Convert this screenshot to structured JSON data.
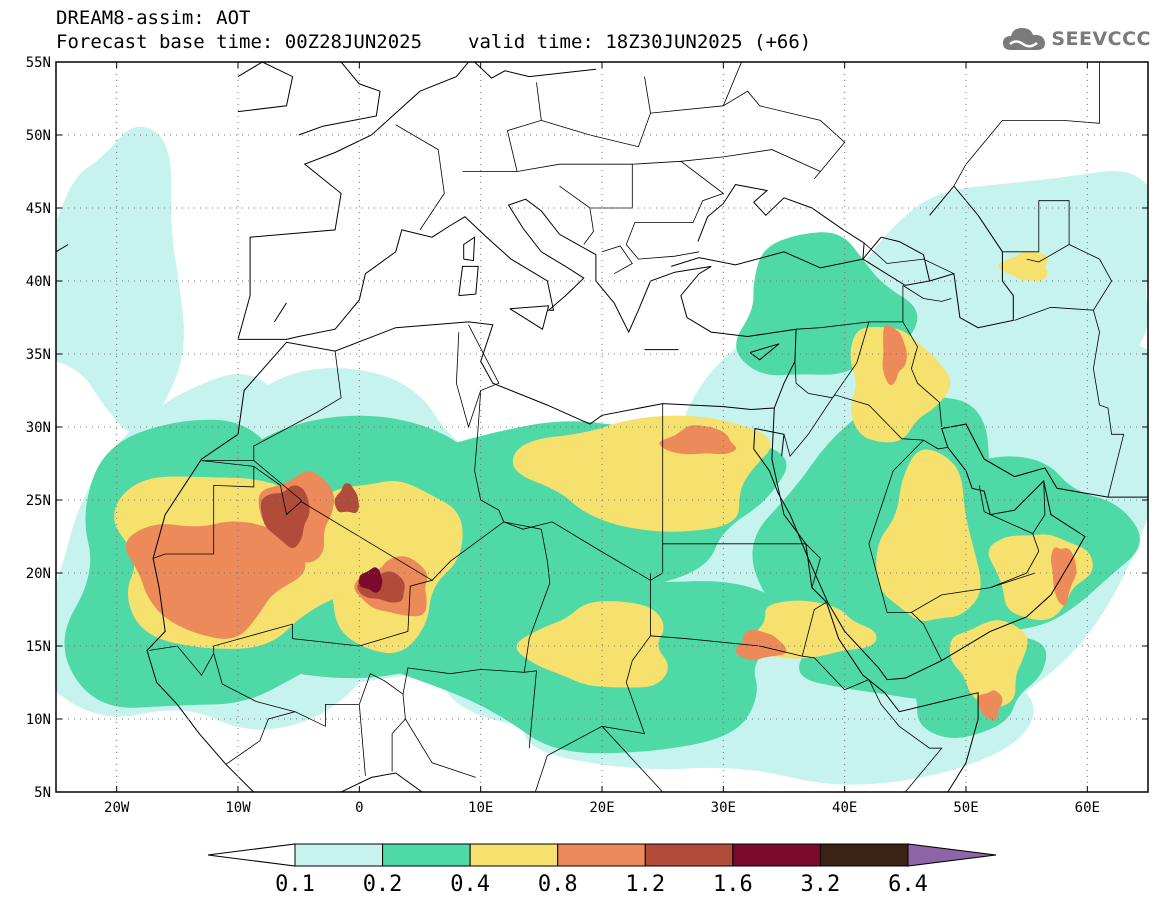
{
  "header": {
    "title": "DREAM8-assim: AOT",
    "base_time": "Forecast base time: 00Z28JUN2025",
    "valid_time": "valid time: 18Z30JUN2025 (+66)"
  },
  "logo": {
    "text": "SEEVCCC",
    "icon": "cloud-icon",
    "color": "#7a7a7a"
  },
  "map": {
    "lat_labels": [
      "55N",
      "50N",
      "45N",
      "40N",
      "35N",
      "30N",
      "25N",
      "20N",
      "15N",
      "10N",
      "5N"
    ],
    "lon_labels": [
      "20W",
      "10W",
      "0",
      "10E",
      "20E",
      "30E",
      "40E",
      "50E",
      "60E"
    ],
    "lat_range": [
      5,
      55
    ],
    "lon_range": [
      -25,
      65
    ],
    "grid": "dotted",
    "lat_ticks": [
      55,
      50,
      45,
      40,
      35,
      30,
      25,
      20,
      15,
      10,
      5
    ],
    "lon_ticks": [
      -20,
      -10,
      0,
      10,
      20,
      30,
      40,
      50,
      60
    ],
    "aot_fields": [
      {
        "level": 0,
        "blobs": [
          [
            -12,
            20,
            14,
            12
          ],
          [
            0,
            22,
            18,
            11
          ],
          [
            25,
            20,
            25,
            10
          ],
          [
            47,
            25,
            20,
            15
          ],
          [
            55,
            40,
            12,
            8
          ],
          [
            -20,
            40,
            6,
            10
          ],
          [
            35,
            12,
            20,
            7
          ]
        ]
      },
      {
        "level": 1,
        "blobs": [
          [
            -12,
            20,
            13,
            10
          ],
          [
            3,
            22,
            15,
            9
          ],
          [
            20,
            25,
            14,
            6
          ],
          [
            20,
            14,
            16,
            6
          ],
          [
            44,
            22,
            10,
            10
          ],
          [
            45,
            15,
            8,
            4
          ],
          [
            38,
            38,
            7,
            5
          ],
          [
            55,
            22,
            8,
            6
          ],
          [
            50,
            13,
            6,
            4
          ],
          [
            10,
            18,
            8,
            4
          ]
        ]
      },
      {
        "level": 2,
        "blobs": [
          [
            -10,
            21,
            11,
            6
          ],
          [
            2,
            21,
            6,
            6
          ],
          [
            24,
            27,
            10,
            4
          ],
          [
            20,
            15,
            6,
            3
          ],
          [
            47,
            22,
            4,
            6
          ],
          [
            37,
            16,
            5,
            2
          ],
          [
            44,
            33,
            4,
            4
          ],
          [
            56,
            20,
            4,
            3
          ],
          [
            52,
            14,
            3,
            3
          ],
          [
            55,
            41,
            2,
            1
          ]
        ]
      },
      {
        "level": 3,
        "blobs": [
          [
            -12,
            20,
            7,
            4
          ],
          [
            -5,
            24,
            3,
            3
          ],
          [
            3,
            19,
            3,
            2
          ],
          [
            28,
            29,
            3,
            1
          ],
          [
            33,
            15,
            2,
            1
          ],
          [
            44,
            35,
            1,
            2
          ],
          [
            58,
            20,
            1,
            2
          ],
          [
            52,
            11,
            1,
            1
          ]
        ]
      },
      {
        "level": 4,
        "blobs": [
          [
            -6,
            24,
            2,
            2
          ],
          [
            2,
            19,
            2,
            1
          ],
          [
            -1,
            25,
            1,
            1
          ]
        ]
      },
      {
        "level": 5,
        "blobs": [
          [
            1,
            19.5,
            1,
            0.8
          ]
        ]
      }
    ]
  },
  "colorbar": {
    "labels": [
      "0.1",
      "0.2",
      "0.4",
      "0.8",
      "1.2",
      "1.6",
      "3.2",
      "6.4"
    ],
    "colors": [
      "#c7f3ee",
      "#4fd9a6",
      "#f6e06e",
      "#ec8a5a",
      "#b14c3a",
      "#7b0a2d",
      "#3c2214"
    ],
    "under_color": "#ffffff",
    "over_color": "#8d65a8"
  }
}
